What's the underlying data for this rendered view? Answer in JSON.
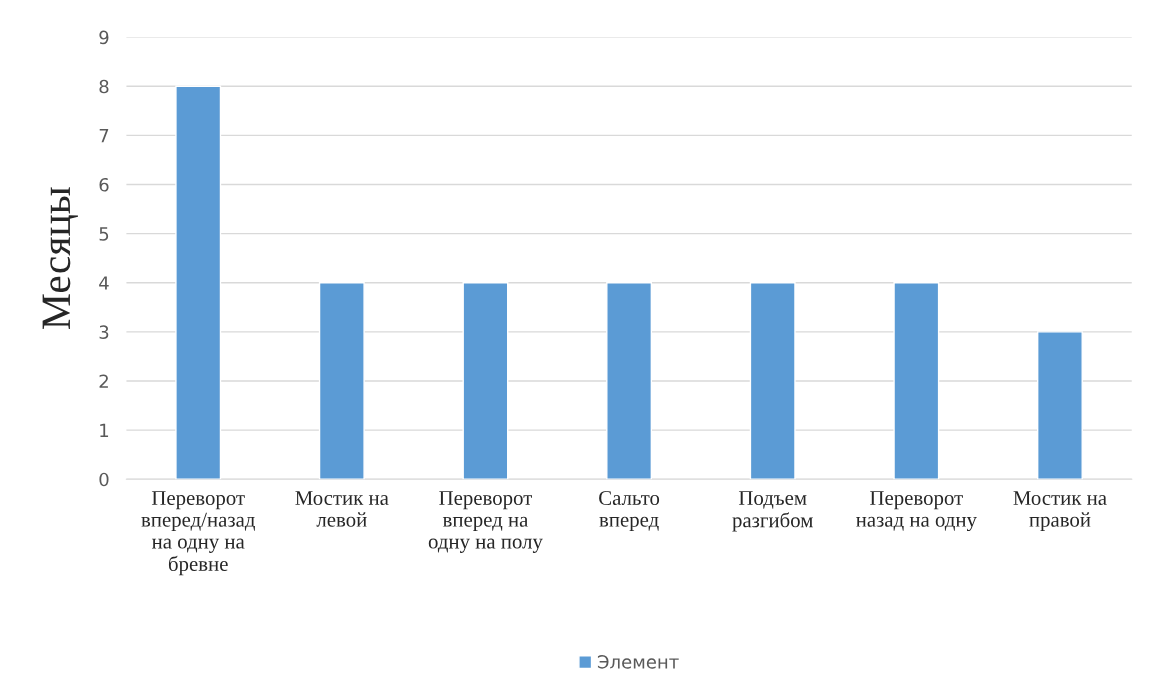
{
  "chart_data": {
    "type": "bar",
    "ylabel": "Месяцы",
    "categories": [
      "Переворот\nвперед/назад\nна одну на\nбревне",
      "Мостик на\nлевой",
      "Переворот\nвперед на\nодну на полу",
      "Сальто\nвперед",
      "Подъем\nразгибом",
      "Переворот\nназад на одну",
      "Мостик на\nправой"
    ],
    "series": [
      {
        "name": "Элемент",
        "color": "#5b9bd5",
        "values": [
          8,
          4,
          4,
          4,
          4,
          4,
          3
        ]
      }
    ],
    "ylim": [
      0,
      9
    ],
    "yticks": [
      0,
      1,
      2,
      3,
      4,
      5,
      6,
      7,
      8,
      9
    ],
    "grid": "y",
    "legend": "bottom"
  }
}
